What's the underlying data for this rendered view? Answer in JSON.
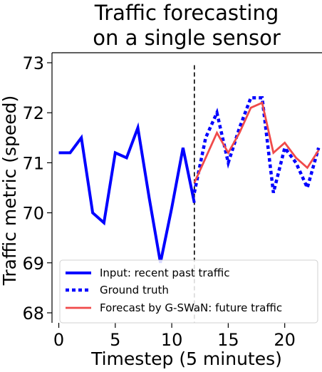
{
  "chart_data": {
    "type": "line",
    "title_lines": [
      "Traffic forecasting",
      "on a single sensor"
    ],
    "xlabel": "Timestep (5 minutes)",
    "ylabel": "Traffic metric (speed)",
    "xlim": [
      -0.6,
      23.3
    ],
    "ylim": [
      67.8,
      73.2
    ],
    "xticks": [
      0,
      5,
      10,
      15,
      20
    ],
    "yticks": [
      68,
      69,
      70,
      71,
      72,
      73
    ],
    "split_line_x": 12,
    "series": [
      {
        "name": "Input: recent past traffic",
        "style": "solid-thick",
        "color": "#0000ff",
        "x": [
          0,
          1,
          2,
          3,
          4,
          5,
          6,
          7,
          8,
          9,
          10,
          11,
          12
        ],
        "y": [
          71.2,
          71.2,
          71.5,
          70.0,
          69.8,
          71.2,
          71.1,
          71.7,
          70.3,
          69.0,
          70.1,
          71.3,
          70.2
        ]
      },
      {
        "name": "Ground truth",
        "style": "dotted",
        "color": "#0000ff",
        "x": [
          12,
          13,
          14,
          15,
          16,
          17,
          18,
          19,
          20,
          21,
          22,
          23
        ],
        "y": [
          70.4,
          71.5,
          72.0,
          71.0,
          71.7,
          72.3,
          72.3,
          70.4,
          71.3,
          71.0,
          70.5,
          71.3
        ]
      },
      {
        "name": "Forecast by G-SWaN: future traffic",
        "style": "solid",
        "color": "#f04a4a",
        "x": [
          12,
          13,
          14,
          15,
          16,
          17,
          18,
          19,
          20,
          21,
          22,
          23
        ],
        "y": [
          70.6,
          71.1,
          71.6,
          71.2,
          71.6,
          72.1,
          72.2,
          71.2,
          71.4,
          71.1,
          70.9,
          71.25
        ]
      }
    ],
    "grid": false,
    "legend_position": "lower-right"
  }
}
